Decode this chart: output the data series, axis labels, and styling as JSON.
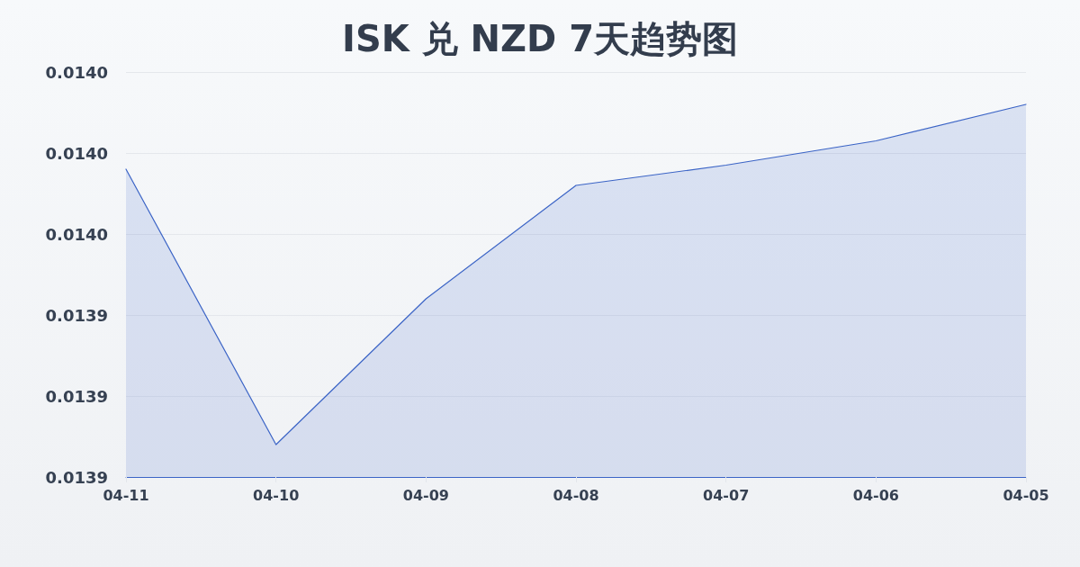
{
  "chart_data": {
    "type": "area",
    "title": "ISK 兑 NZD 7天趋势图",
    "categories": [
      "04-11",
      "04-10",
      "04-09",
      "04-08",
      "04-07",
      "04-06",
      "04-05"
    ],
    "series": [
      {
        "color": "#3b64c6",
        "values": [
          0.013976,
          0.013908,
          0.013944,
          0.013972,
          0.013977,
          0.013983,
          0.013992
        ]
      }
    ],
    "ylim": [
      0.0139,
      0.014
    ],
    "yticks": [
      0.0139,
      {
        "value": 0.01392,
        "label": "0.0139"
      },
      {
        "value": 0.01394,
        "label": "0.0139"
      },
      {
        "value": 0.01396,
        "label": "0.0140"
      },
      {
        "value": 0.01398,
        "label": "0.0140"
      },
      {
        "value": 0.014,
        "label": "0.0140"
      }
    ],
    "grid": "y",
    "marker": "none"
  }
}
